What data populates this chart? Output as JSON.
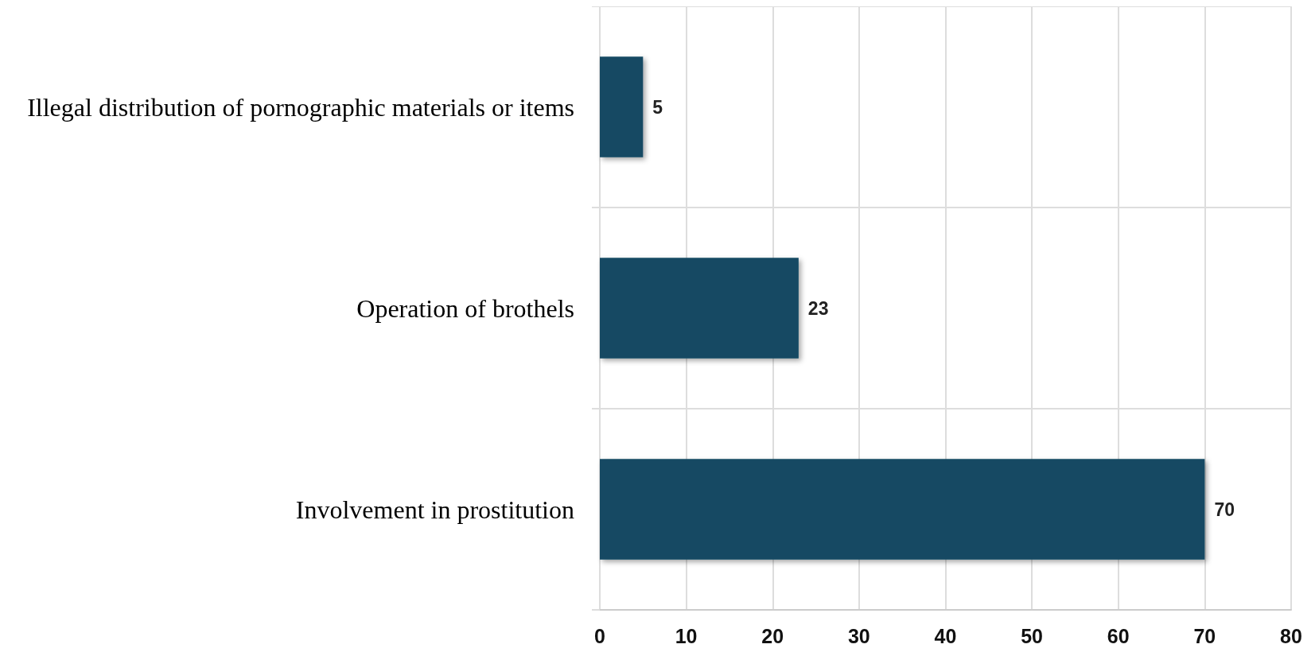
{
  "chart_data": {
    "type": "bar",
    "orientation": "horizontal",
    "categories": [
      "Illegal distribution of pornographic materials or items",
      "Operation of brothels",
      "Involvement in prostitution"
    ],
    "values": [
      5,
      23,
      70
    ],
    "color": "#134a63",
    "xlim": [
      0,
      80
    ],
    "xticks": [
      0,
      10,
      20,
      30,
      40,
      50,
      60,
      70,
      80
    ],
    "grid": true,
    "data_labels": true
  }
}
